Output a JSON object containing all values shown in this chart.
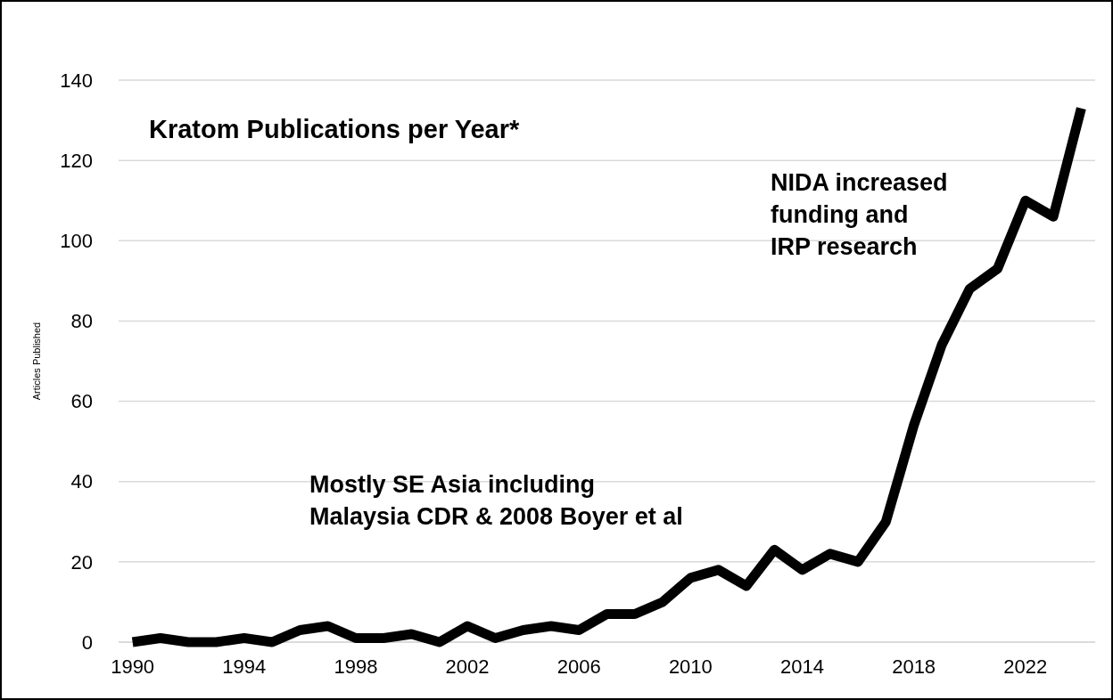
{
  "chart_data": {
    "type": "line",
    "title": "Kratom Publications per Year*",
    "ylabel": "Articles Published",
    "x": [
      1990,
      1991,
      1992,
      1993,
      1994,
      1995,
      1996,
      1997,
      1998,
      1999,
      2000,
      2001,
      2002,
      2003,
      2004,
      2005,
      2006,
      2007,
      2008,
      2009,
      2010,
      2011,
      2012,
      2013,
      2014,
      2015,
      2016,
      2017,
      2018,
      2019,
      2020,
      2021,
      2022,
      2023,
      2024
    ],
    "series": [
      {
        "color": "#000000",
        "values": [
          0,
          1,
          0,
          0,
          1,
          0,
          3,
          4,
          1,
          1,
          2,
          0,
          4,
          1,
          3,
          4,
          3,
          7,
          7,
          10,
          16,
          18,
          14,
          23,
          18,
          22,
          20,
          30,
          54,
          74,
          88,
          93,
          110,
          106,
          133
        ]
      }
    ],
    "xlim": [
      1989.5,
      2024.5
    ],
    "xticks": [
      1990,
      1994,
      1998,
      2002,
      2006,
      2010,
      2014,
      2018,
      2022
    ],
    "ylim": [
      0,
      140
    ],
    "yticks": [
      0,
      20,
      40,
      60,
      80,
      100,
      120,
      140
    ],
    "grid": "y",
    "marker": "none",
    "line_style": "solid",
    "annotations": [
      "Mostly SE Asia including\nMalaysia CDR & 2008 Boyer et al",
      "NIDA increased\nfunding and\nIRP research"
    ]
  }
}
